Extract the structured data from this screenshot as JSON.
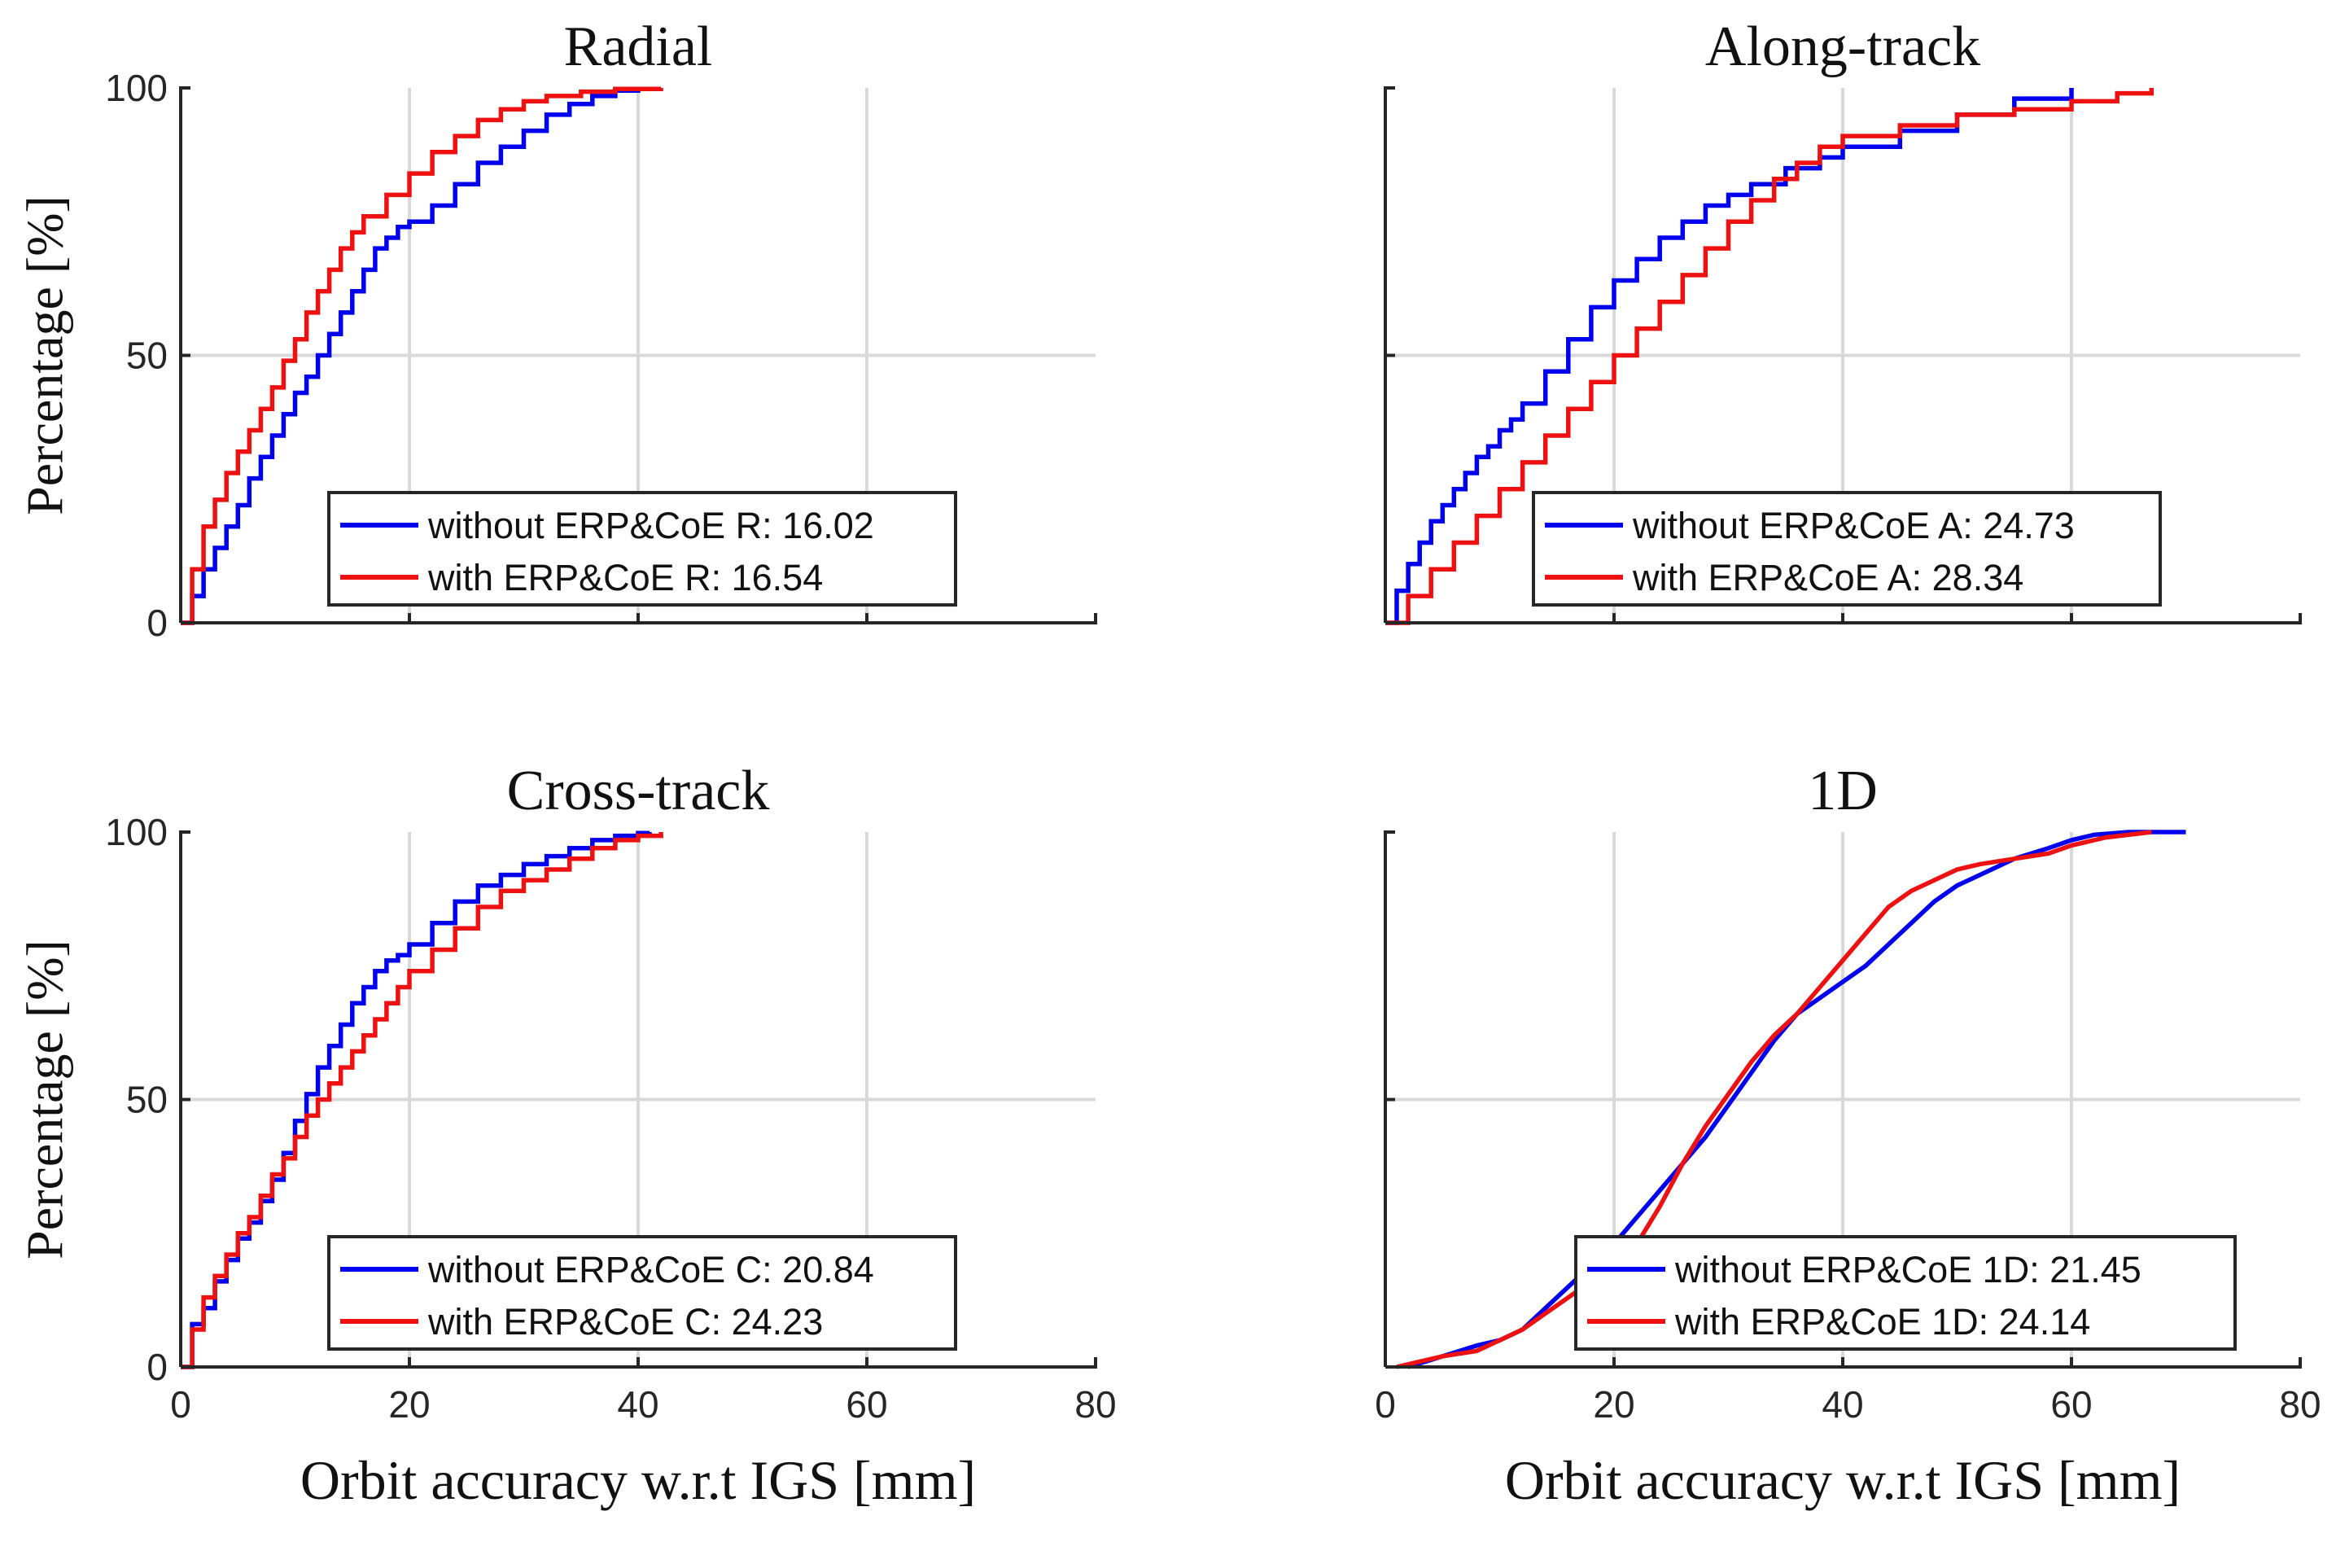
{
  "figure": {
    "ylabel": "Percentage [%]",
    "xlabel": "Orbit accuracy w.r.t IGS [mm]"
  },
  "colors": {
    "blue": "#0000ee",
    "red": "#ee1111",
    "grid": "#d9d9d9",
    "axis": "#262626"
  },
  "chart_data": [
    {
      "type": "line",
      "title": "Radial",
      "xlabel": "",
      "ylabel": "Percentage [%]",
      "xlim": [
        0,
        80
      ],
      "ylim": [
        0,
        100
      ],
      "xticks": [
        "0",
        "20",
        "40",
        "60",
        "80"
      ],
      "yticks": [
        "0",
        "50",
        "100"
      ],
      "show_xticklabels": false,
      "show_yticklabels": true,
      "grid": true,
      "legend_location": "bottom-right",
      "series": [
        {
          "name": "without ERP&CoE  R: 16.02",
          "color": "blue",
          "step": true,
          "x": [
            0,
            1,
            2,
            3,
            4,
            5,
            6,
            7,
            8,
            9,
            10,
            11,
            12,
            13,
            14,
            15,
            16,
            17,
            18,
            19,
            20,
            22,
            24,
            26,
            28,
            30,
            32,
            34,
            36,
            38,
            40
          ],
          "y": [
            0,
            5,
            10,
            14,
            18,
            22,
            27,
            31,
            35,
            39,
            43,
            46,
            50,
            54,
            58,
            62,
            66,
            70,
            72,
            74,
            75,
            78,
            82,
            86,
            89,
            92,
            95,
            97,
            98.5,
            99.5,
            100
          ]
        },
        {
          "name": "with ERP&CoE  R: 16.54",
          "color": "red",
          "step": true,
          "x": [
            0,
            1,
            2,
            3,
            4,
            5,
            6,
            7,
            8,
            9,
            10,
            11,
            12,
            13,
            14,
            15,
            16,
            18,
            20,
            22,
            24,
            26,
            28,
            30,
            32,
            35,
            38,
            42
          ],
          "y": [
            0,
            10,
            18,
            23,
            28,
            32,
            36,
            40,
            44,
            49,
            53,
            58,
            62,
            66,
            70,
            73,
            76,
            80,
            84,
            88,
            91,
            94,
            96,
            97.5,
            98.5,
            99.3,
            99.8,
            100
          ]
        }
      ]
    },
    {
      "type": "line",
      "title": "Along-track",
      "xlabel": "",
      "ylabel": "",
      "xlim": [
        0,
        80
      ],
      "ylim": [
        0,
        100
      ],
      "xticks": [
        "0",
        "20",
        "40",
        "60",
        "80"
      ],
      "yticks": [
        "0",
        "50",
        "100"
      ],
      "show_xticklabels": false,
      "show_yticklabels": false,
      "grid": true,
      "legend_location": "bottom-right",
      "series": [
        {
          "name": "without ERP&CoE  A: 24.73",
          "color": "blue",
          "step": true,
          "x": [
            0,
            1,
            2,
            3,
            4,
            5,
            6,
            7,
            8,
            9,
            10,
            11,
            12,
            14,
            16,
            18,
            20,
            22,
            24,
            26,
            28,
            30,
            32,
            35,
            38,
            40,
            45,
            50,
            55,
            60
          ],
          "y": [
            0,
            6,
            11,
            15,
            19,
            22,
            25,
            28,
            31,
            33,
            36,
            38,
            41,
            47,
            53,
            59,
            64,
            68,
            72,
            75,
            78,
            80,
            82,
            85,
            87,
            89,
            92,
            95,
            98,
            100
          ]
        },
        {
          "name": "with ERP&CoE  A: 28.34",
          "color": "red",
          "step": true,
          "x": [
            0,
            2,
            4,
            6,
            8,
            10,
            12,
            14,
            16,
            18,
            20,
            22,
            24,
            26,
            28,
            30,
            32,
            34,
            36,
            38,
            40,
            45,
            50,
            55,
            60,
            64,
            67
          ],
          "y": [
            0,
            5,
            10,
            15,
            20,
            25,
            30,
            35,
            40,
            45,
            50,
            55,
            60,
            65,
            70,
            75,
            79,
            83,
            86,
            89,
            91,
            93,
            95,
            96,
            97.5,
            99,
            100
          ]
        }
      ]
    },
    {
      "type": "line",
      "title": "Cross-track",
      "xlabel": "Orbit accuracy w.r.t IGS [mm]",
      "ylabel": "Percentage [%]",
      "xlim": [
        0,
        80
      ],
      "ylim": [
        0,
        100
      ],
      "xticks": [
        "0",
        "20",
        "40",
        "60",
        "80"
      ],
      "yticks": [
        "0",
        "50",
        "100"
      ],
      "show_xticklabels": true,
      "show_yticklabels": true,
      "grid": true,
      "legend_location": "bottom-right",
      "series": [
        {
          "name": "without ERP&CoE  C: 20.84",
          "color": "blue",
          "step": true,
          "x": [
            0,
            1,
            2,
            3,
            4,
            5,
            6,
            7,
            8,
            9,
            10,
            11,
            12,
            13,
            14,
            15,
            16,
            17,
            18,
            19,
            20,
            22,
            24,
            26,
            28,
            30,
            32,
            34,
            36,
            38,
            40,
            41
          ],
          "y": [
            0,
            8,
            11,
            16,
            20,
            24,
            27,
            31,
            35,
            40,
            46,
            51,
            56,
            60,
            64,
            68,
            71,
            74,
            76,
            77,
            79,
            83,
            87,
            90,
            92,
            94,
            95.5,
            97,
            98.5,
            99.3,
            99.8,
            100
          ]
        },
        {
          "name": "with ERP&CoE  C: 24.23",
          "color": "red",
          "step": true,
          "x": [
            0,
            1,
            2,
            3,
            4,
            5,
            6,
            7,
            8,
            9,
            10,
            11,
            12,
            13,
            14,
            15,
            16,
            17,
            18,
            19,
            20,
            22,
            24,
            26,
            28,
            30,
            32,
            34,
            36,
            38,
            40,
            42
          ],
          "y": [
            0,
            7,
            13,
            17,
            21,
            25,
            28,
            32,
            36,
            39,
            43,
            47,
            50,
            53,
            56,
            59,
            62,
            65,
            68,
            71,
            74,
            78,
            82,
            86,
            89,
            91,
            93,
            95,
            97,
            98.5,
            99.3,
            100
          ]
        }
      ]
    },
    {
      "type": "line",
      "title": "1D",
      "xlabel": "Orbit accuracy w.r.t IGS [mm]",
      "ylabel": "",
      "xlim": [
        0,
        80
      ],
      "ylim": [
        0,
        100
      ],
      "xticks": [
        "0",
        "20",
        "40",
        "60",
        "80"
      ],
      "yticks": [
        "0",
        "50",
        "100"
      ],
      "show_xticklabels": true,
      "show_yticklabels": false,
      "grid": true,
      "legend_location": "bottom-right",
      "series": [
        {
          "name": "without ERP&CoE  1D: 21.45",
          "color": "blue",
          "step": false,
          "x": [
            2,
            5,
            8,
            10,
            12,
            14,
            16,
            18,
            20,
            22,
            24,
            26,
            28,
            30,
            32,
            34,
            36,
            38,
            40,
            42,
            44,
            46,
            48,
            50,
            52,
            55,
            58,
            60,
            62,
            65,
            70
          ],
          "y": [
            0,
            2,
            4,
            5,
            7,
            11,
            15,
            19,
            23,
            28,
            33,
            38,
            43,
            49,
            55,
            61,
            66,
            69,
            72,
            75,
            79,
            83,
            87,
            90,
            92,
            95,
            97,
            98.5,
            99.5,
            100,
            100
          ]
        },
        {
          "name": "with ERP&CoE  1D: 24.14",
          "color": "red",
          "step": false,
          "x": [
            1,
            3,
            5,
            8,
            10,
            12,
            14,
            16,
            18,
            20,
            22,
            24,
            26,
            28,
            30,
            32,
            34,
            36,
            38,
            40,
            42,
            44,
            46,
            48,
            50,
            52,
            55,
            58,
            60,
            63,
            67
          ],
          "y": [
            0,
            1,
            2,
            3,
            5,
            7,
            10,
            13,
            16,
            19,
            23,
            30,
            38,
            45,
            51,
            57,
            62,
            66,
            71,
            76,
            81,
            86,
            89,
            91,
            93,
            94,
            95,
            96,
            97.5,
            99,
            100
          ]
        }
      ]
    }
  ]
}
